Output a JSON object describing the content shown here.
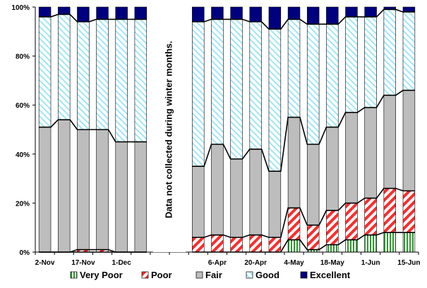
{
  "chart_data": {
    "type": "stacked_bar",
    "title": "",
    "xlabel": "",
    "ylabel": "",
    "ylim": [
      0,
      100
    ],
    "y_ticks": [
      "0%",
      "20%",
      "40%",
      "60%",
      "80%",
      "100%"
    ],
    "x_tick_labels": [
      {
        "label": "2-Nov",
        "at": 0
      },
      {
        "label": "17-Nov",
        "at": 2
      },
      {
        "label": "1-Dec",
        "at": 4
      },
      {
        "label": "6-Apr",
        "at": 9
      },
      {
        "label": "20-Apr",
        "at": 11
      },
      {
        "label": "4-May",
        "at": 13
      },
      {
        "label": "18-May",
        "at": 15
      },
      {
        "label": "1-Jun",
        "at": 17
      },
      {
        "label": "15-Jun",
        "at": 19
      }
    ],
    "gap": {
      "from": 6,
      "to": 7,
      "label": "Data not collected during winter months."
    },
    "legend_position": "bottom",
    "series": [
      {
        "name": "Very Poor",
        "color": "#2e9a2e",
        "pattern": "vertical-stripes"
      },
      {
        "name": "Poor",
        "color": "#ff2b2b",
        "pattern": "diagonal-stripes"
      },
      {
        "name": "Fair",
        "color": "#bdbdbd",
        "pattern": "solid"
      },
      {
        "name": "Good",
        "color": "#9fe6f7",
        "pattern": "light-diagonal"
      },
      {
        "name": "Excellent",
        "color": "#00007f",
        "pattern": "solid"
      }
    ],
    "bars": [
      {
        "slot": 0,
        "values": [
          0,
          0,
          51,
          45,
          4
        ]
      },
      {
        "slot": 1,
        "values": [
          0,
          0,
          54,
          43,
          3
        ]
      },
      {
        "slot": 2,
        "values": [
          0,
          1,
          49,
          44,
          6
        ]
      },
      {
        "slot": 3,
        "values": [
          0,
          1,
          49,
          45,
          5
        ]
      },
      {
        "slot": 4,
        "values": [
          0,
          0,
          45,
          50,
          5
        ]
      },
      {
        "slot": 5,
        "values": [
          0,
          0,
          45,
          50,
          5
        ]
      },
      {
        "slot": 8,
        "values": [
          0,
          6,
          29,
          59,
          6
        ]
      },
      {
        "slot": 9,
        "values": [
          0,
          7,
          37,
          51,
          5
        ]
      },
      {
        "slot": 10,
        "values": [
          0,
          6,
          32,
          57,
          5
        ]
      },
      {
        "slot": 11,
        "values": [
          0,
          7,
          35,
          52,
          6
        ]
      },
      {
        "slot": 12,
        "values": [
          0,
          6,
          27,
          58,
          9
        ]
      },
      {
        "slot": 13,
        "values": [
          5,
          13,
          37,
          40,
          5
        ]
      },
      {
        "slot": 14,
        "values": [
          1,
          10,
          33,
          49,
          7
        ]
      },
      {
        "slot": 15,
        "values": [
          3,
          14,
          34,
          42,
          7
        ]
      },
      {
        "slot": 16,
        "values": [
          5,
          15,
          37,
          39,
          4
        ]
      },
      {
        "slot": 17,
        "values": [
          7,
          15,
          37,
          37,
          4
        ]
      },
      {
        "slot": 18,
        "values": [
          8,
          18,
          38,
          35,
          1
        ]
      },
      {
        "slot": 19,
        "values": [
          8,
          17,
          41,
          32,
          2
        ]
      }
    ]
  }
}
